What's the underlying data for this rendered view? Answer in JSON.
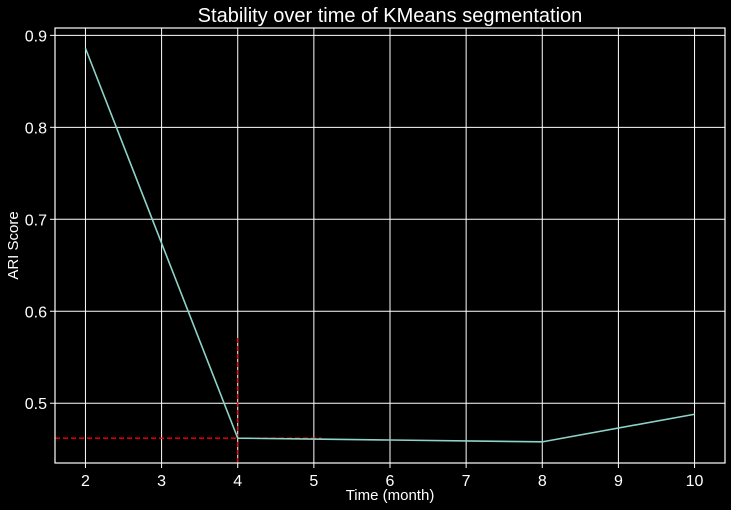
{
  "chart_data": {
    "type": "line",
    "title": "Stability over time of KMeans segmentation",
    "xlabel": "Time (month)",
    "ylabel": "ARI Score",
    "xlim": [
      1.6,
      10.4
    ],
    "ylim": [
      0.435,
      0.908
    ],
    "x_ticks": [
      2,
      3,
      4,
      5,
      6,
      7,
      8,
      9,
      10
    ],
    "y_ticks": [
      0.5,
      0.6,
      0.7,
      0.8,
      0.9
    ],
    "x_tick_labels": [
      "2",
      "3",
      "4",
      "5",
      "6",
      "7",
      "8",
      "9",
      "10"
    ],
    "y_tick_labels": [
      "0.5",
      "0.6",
      "0.7",
      "0.8",
      "0.9"
    ],
    "grid": true,
    "legend": "none",
    "series": [
      {
        "color": "#8dd3c7",
        "x": [
          2,
          4,
          5,
          6,
          7,
          8,
          10
        ],
        "y": [
          0.886,
          0.462,
          0.461,
          0.46,
          0.459,
          0.458,
          0.488
        ]
      }
    ],
    "reference_lines": {
      "color": "#ff0000",
      "style": "dashed",
      "horizontal": {
        "y": 0.462,
        "x_from": 1.6,
        "x_to": 5.1
      },
      "vertical": {
        "x": 4,
        "y_from": 0.435,
        "y_to": 0.572
      }
    },
    "colors": {
      "background": "#000000",
      "axes": "#ffffff",
      "grid": "#ffffff",
      "text": "#ffffff"
    }
  }
}
